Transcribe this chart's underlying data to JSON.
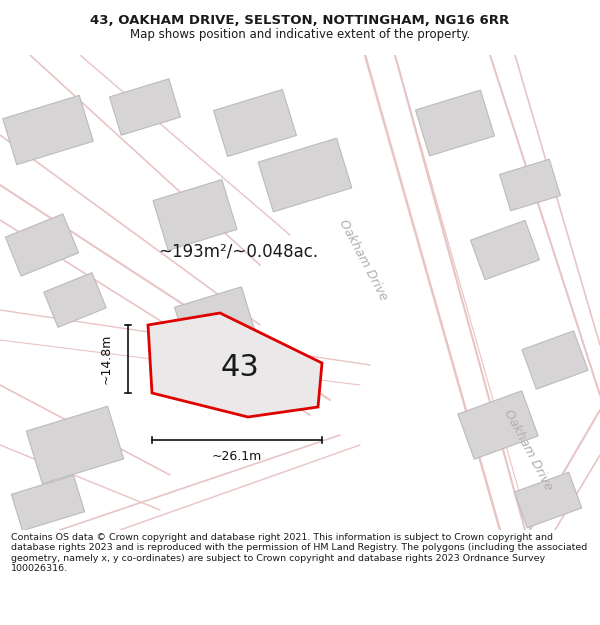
{
  "title": "43, OAKHAM DRIVE, SELSTON, NOTTINGHAM, NG16 6RR",
  "subtitle": "Map shows position and indicative extent of the property.",
  "footer": "Contains OS data © Crown copyright and database right 2021. This information is subject to Crown copyright and database rights 2023 and is reproduced with the permission of HM Land Registry. The polygons (including the associated geometry, namely x, y co-ordinates) are subject to Crown copyright and database rights 2023 Ordnance Survey 100026316.",
  "map_bg": "#f2f0f0",
  "title_bg": "#ffffff",
  "footer_bg": "#ffffff",
  "road_color": "#e8c4c4",
  "building_fill": "#d6d4d4",
  "building_edge": "#bcbaba",
  "plot_fill": "#eae8e8",
  "plot_edge": "#e00000",
  "plot_lw": 2.0,
  "label_43": "43",
  "area_label": "~193m²/~0.048ac.",
  "width_label": "~26.1m",
  "height_label": "~14.8m",
  "road_label_1": "Oakham Drive",
  "road_label_2": "Oakham Drive",
  "road_label_color": "#b0aeae",
  "dim_color": "#111111",
  "figsize": [
    6.0,
    6.25
  ],
  "dpi": 100,
  "title_fontsize": 9.5,
  "subtitle_fontsize": 8.5,
  "footer_fontsize": 6.8,
  "area_fontsize": 12,
  "label43_fontsize": 22,
  "dim_fontsize": 9,
  "road_fontsize": 9
}
